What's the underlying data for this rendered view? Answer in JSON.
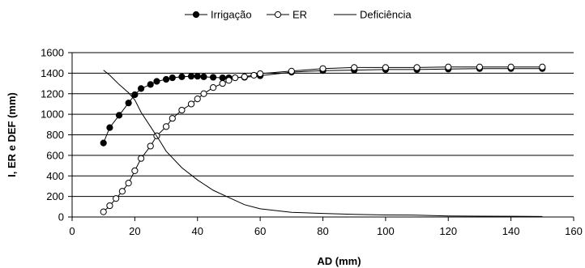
{
  "chart_data": {
    "type": "line",
    "title": "",
    "xlabel": "AD (mm)",
    "ylabel": "I, ER e DEF (mm)",
    "xlim": [
      0,
      160
    ],
    "ylim": [
      0,
      1600
    ],
    "xticks": [
      0,
      20,
      40,
      60,
      80,
      100,
      120,
      140,
      160
    ],
    "yticks": [
      0,
      200,
      400,
      600,
      800,
      1000,
      1200,
      1400,
      1600
    ],
    "grid": "horizontal",
    "legend_position": "top",
    "series": [
      {
        "name": "Irrigação",
        "marker": "filled-circle",
        "color": "#000000",
        "x": [
          10,
          12,
          15,
          18,
          20,
          22,
          25,
          27,
          30,
          32,
          35,
          38,
          40,
          42,
          45,
          48,
          50,
          55,
          60,
          70,
          80,
          90,
          100,
          110,
          120,
          130,
          140,
          150
        ],
        "y": [
          720,
          870,
          990,
          1110,
          1190,
          1250,
          1290,
          1320,
          1340,
          1355,
          1365,
          1370,
          1370,
          1365,
          1360,
          1355,
          1355,
          1360,
          1375,
          1410,
          1425,
          1430,
          1435,
          1435,
          1440,
          1445,
          1445,
          1445
        ]
      },
      {
        "name": "ER",
        "marker": "open-circle",
        "color": "#000000",
        "x": [
          10,
          12,
          14,
          16,
          18,
          20,
          22,
          25,
          27,
          30,
          32,
          35,
          38,
          40,
          42,
          45,
          48,
          50,
          52,
          55,
          58,
          60,
          70,
          80,
          90,
          100,
          110,
          120,
          130,
          140,
          150
        ],
        "y": [
          50,
          110,
          180,
          250,
          330,
          450,
          570,
          690,
          790,
          880,
          960,
          1040,
          1100,
          1150,
          1200,
          1260,
          1300,
          1330,
          1355,
          1365,
          1380,
          1395,
          1420,
          1445,
          1455,
          1455,
          1455,
          1460,
          1460,
          1460,
          1460
        ]
      },
      {
        "name": "Deficiência",
        "marker": "none",
        "color": "#000000",
        "x": [
          10,
          12,
          15,
          18,
          20,
          22,
          25,
          28,
          30,
          35,
          40,
          45,
          50,
          55,
          60,
          70,
          80,
          90,
          100,
          110,
          120,
          130,
          140,
          150
        ],
        "y": [
          1430,
          1380,
          1290,
          1210,
          1140,
          1020,
          880,
          740,
          640,
          480,
          360,
          260,
          190,
          120,
          80,
          45,
          35,
          25,
          20,
          18,
          10,
          8,
          7,
          5
        ]
      }
    ]
  }
}
